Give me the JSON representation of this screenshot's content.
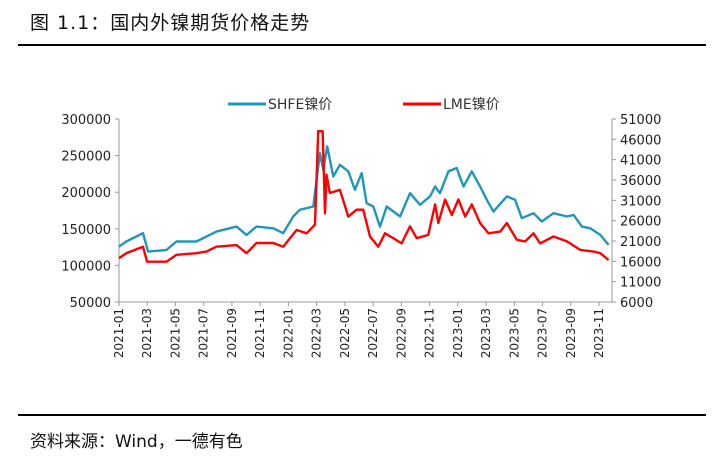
{
  "title": "图 1.1：国内外镍期货价格走势",
  "source": "资料来源：Wind，一德有色",
  "chart_data": {
    "type": "line",
    "x_unit": "months since 2021-01",
    "x_ticks": [
      0,
      2,
      4,
      6,
      8,
      10,
      12,
      14,
      16,
      18,
      20,
      22,
      24,
      26,
      28,
      30,
      32,
      34
    ],
    "x_tick_labels": [
      "2021-01",
      "2021-03",
      "2021-05",
      "2021-07",
      "2021-09",
      "2021-11",
      "2022-01",
      "2022-03",
      "2022-05",
      "2022-07",
      "2022-09",
      "2022-11",
      "2023-01",
      "2023-03",
      "2023-05",
      "2023-07",
      "2023-09",
      "2023-11"
    ],
    "xlim": [
      0,
      35
    ],
    "y_left": {
      "ylim": [
        50000,
        300000
      ],
      "ticks": [
        50000,
        100000,
        150000,
        200000,
        250000,
        300000
      ],
      "tick_labels": [
        "50000",
        "100000",
        "150000",
        "200000",
        "250000",
        "300000"
      ]
    },
    "y_right": {
      "ylim": [
        6000,
        51000
      ],
      "ticks": [
        6000,
        11000,
        16000,
        21000,
        26000,
        31000,
        36000,
        41000,
        46000,
        51000
      ],
      "tick_labels": [
        "6000",
        "11000",
        "16000",
        "21000",
        "26000",
        "31000",
        "36000",
        "41000",
        "46000",
        "51000"
      ]
    },
    "legend_position": "top-center",
    "series": [
      {
        "name": "SHFE镍价",
        "axis": "left",
        "color": "#2196b8",
        "x": [
          0,
          0.52,
          1.7,
          2.06,
          3.36,
          4.07,
          5.48,
          6.19,
          6.9,
          8.32,
          9.03,
          9.74,
          10.92,
          11.63,
          12.34,
          12.81,
          13.76,
          14.23,
          14.47,
          14.75,
          15.18,
          15.65,
          16.24,
          16.71,
          17.19,
          17.54,
          18.01,
          18.49,
          18.96,
          19.91,
          20.61,
          21.32,
          22.03,
          22.39,
          22.74,
          23.33,
          23.92,
          24.4,
          24.99,
          25.58,
          26.05,
          26.52,
          27.47,
          28.06,
          28.53,
          29.36,
          29.95,
          30.78,
          31.73,
          32.2,
          32.79,
          33.38,
          34.09,
          34.68
        ],
        "y": [
          125700,
          132600,
          144000,
          118900,
          121000,
          132600,
          132600,
          139400,
          146200,
          153000,
          141700,
          153000,
          150700,
          144000,
          166800,
          175900,
          180500,
          253400,
          230600,
          262600,
          221500,
          237500,
          228400,
          203300,
          226100,
          185000,
          180500,
          153000,
          180500,
          166800,
          198700,
          182800,
          194200,
          207800,
          198700,
          228400,
          233000,
          207800,
          228400,
          207800,
          189600,
          173500,
          194200,
          189600,
          164500,
          171300,
          160000,
          171300,
          166800,
          169000,
          153000,
          150700,
          141700,
          128000
        ]
      },
      {
        "name": "LME镍价",
        "axis": "right",
        "color": "#ff0000",
        "x": [
          0,
          0.52,
          1.7,
          1.99,
          3.36,
          4.07,
          5.48,
          6.19,
          6.9,
          8.32,
          9.03,
          9.74,
          10.92,
          11.63,
          12.58,
          13.29,
          13.88,
          14.11,
          14.42,
          14.59,
          14.7,
          14.94,
          15.65,
          16.24,
          16.83,
          17.3,
          17.78,
          18.37,
          18.84,
          19.43,
          20.02,
          20.61,
          21.09,
          21.91,
          22.39,
          22.62,
          23.1,
          23.57,
          24.04,
          24.52,
          24.99,
          25.58,
          26.17,
          27.0,
          27.47,
          28.18,
          28.77,
          29.36,
          29.83,
          30.78,
          31.73,
          32.67,
          33.62,
          34.09,
          34.68
        ],
        "y": [
          16760,
          18000,
          19600,
          15900,
          15900,
          17600,
          18000,
          18400,
          19600,
          20000,
          18000,
          20500,
          20500,
          19600,
          23700,
          22900,
          25000,
          48000,
          48000,
          27800,
          37300,
          32800,
          33600,
          27000,
          28700,
          28700,
          22100,
          19600,
          22900,
          21700,
          20400,
          24600,
          21700,
          22500,
          30000,
          25400,
          31200,
          27400,
          31200,
          27000,
          30000,
          25400,
          22900,
          23300,
          25400,
          21300,
          20900,
          22900,
          20400,
          22100,
          20900,
          18800,
          18400,
          18000,
          16300
        ]
      }
    ]
  }
}
